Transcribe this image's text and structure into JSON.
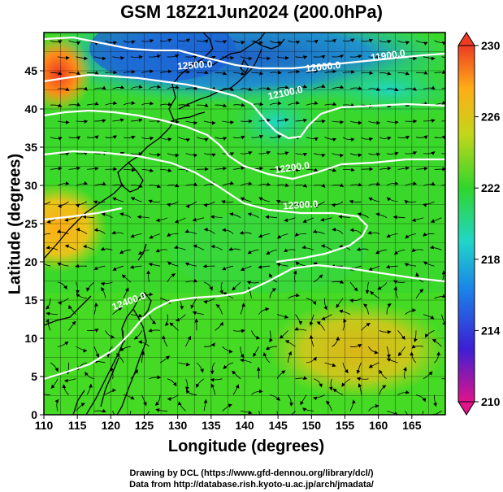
{
  "title": "GSM 18Z21Jun2024 (200.0hPa)",
  "axes": {
    "xlabel": "Longitude (degrees)",
    "ylabel": "Latitude  (degrees)",
    "x_ticks": [
      "110",
      "115",
      "120",
      "125",
      "130",
      "135",
      "140",
      "145",
      "150",
      "155",
      "160",
      "165"
    ],
    "y_ticks": [
      "0",
      "5",
      "10",
      "15",
      "20",
      "25",
      "30",
      "35",
      "40",
      "45"
    ],
    "x_range": [
      110,
      170
    ],
    "y_range": [
      0,
      50
    ]
  },
  "colorbar": {
    "labels": [
      "210",
      "214",
      "218",
      "222",
      "226",
      "230"
    ],
    "range": [
      210,
      230
    ],
    "colors": [
      "#e0138a",
      "#3b1fd6",
      "#1a86e8",
      "#1fd6c8",
      "#2fd62a",
      "#c3d61a",
      "#ffad15",
      "#ee3c23"
    ]
  },
  "contours": {
    "labels": [
      "11900.0",
      "12000.0",
      "12100.0",
      "12200.0",
      "12300.0",
      "12400.0",
      "12500.0"
    ]
  },
  "credits": {
    "line1": "Drawing by DCL (https://www.gfd-dennou.org/library/dcl/)",
    "line2": "Data from http://database.rish.kyoto-u.ac.jp/arch/jmadata/"
  }
}
